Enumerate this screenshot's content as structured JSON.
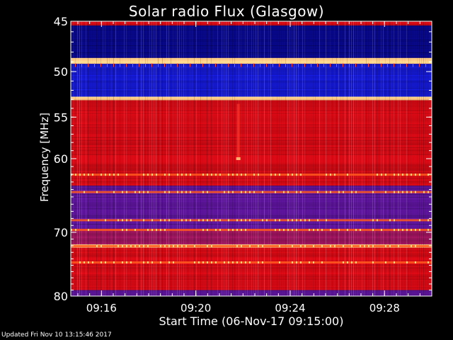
{
  "chart_data": {
    "type": "heatmap",
    "title": "Solar radio Flux (Glasgow)",
    "xlabel": "Start Time (06-Nov-17 09:15:00)",
    "ylabel": "Frequency [MHz]",
    "x_ticks": [
      "09:16",
      "09:20",
      "09:24",
      "09:28"
    ],
    "x_tick_minutes": [
      1,
      5,
      9,
      13
    ],
    "xlim_minutes": [
      -0.3,
      15.0
    ],
    "y_ticks": [
      45,
      50,
      55,
      60,
      70,
      80
    ],
    "ylim_mhz": [
      45,
      80
    ],
    "y_scale": "log",
    "grid": false,
    "colormap": "blue-red-yellow",
    "bands": [
      {
        "mhz_from": 45.0,
        "mhz_to": 45.4,
        "level": "red"
      },
      {
        "mhz_from": 45.4,
        "mhz_to": 48.6,
        "level": "dark-blue"
      },
      {
        "mhz_from": 48.6,
        "mhz_to": 49.2,
        "level": "bright"
      },
      {
        "mhz_from": 49.2,
        "mhz_to": 52.7,
        "level": "blue"
      },
      {
        "mhz_from": 52.7,
        "mhz_to": 53.1,
        "level": "bright"
      },
      {
        "mhz_from": 53.1,
        "mhz_to": 63.5,
        "level": "red"
      },
      {
        "mhz_from": 63.5,
        "mhz_to": 69.5,
        "level": "purple"
      },
      {
        "mhz_from": 69.5,
        "mhz_to": 71.8,
        "level": "red-purple"
      },
      {
        "mhz_from": 71.8,
        "mhz_to": 72.3,
        "level": "bright"
      },
      {
        "mhz_from": 72.3,
        "mhz_to": 79.0,
        "level": "red"
      },
      {
        "mhz_from": 79.0,
        "mhz_to": 80.0,
        "level": "purple"
      }
    ],
    "bright_lines_mhz": [
      62.0,
      64.3,
      68.2,
      69.6,
      72.0,
      74.5
    ],
    "event": {
      "minute": 6.8,
      "mhz_from": 53.5,
      "mhz_to": 60.0
    }
  },
  "footer": "Updated Fri Nov 10 13:15:46 2017"
}
